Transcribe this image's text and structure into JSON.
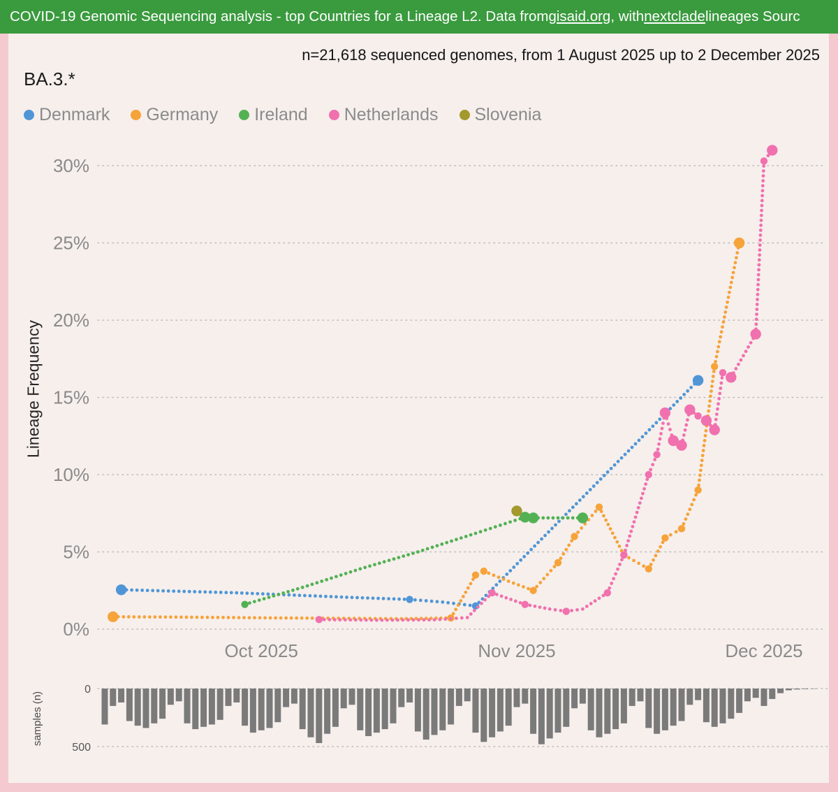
{
  "header": {
    "text_before": "COVID-19 Genomic Sequencing analysis - top Countries for a Lineage L2. Data from ",
    "link1": "gisaid.org",
    "text_mid": ", with ",
    "link2": "nextclade",
    "text_after": " lineages Sourc"
  },
  "subtitle": "n=21,618 sequenced genomes, from 1 August 2025 up to 2 December 2025",
  "lineage_title": "BA.3.*",
  "colors": {
    "header_bg": "#3a9a3e",
    "frame_pink": "#f5c9d0",
    "page_bg": "#f6efec",
    "grid": "#bdbdbd",
    "tick_label": "#8a8a8a",
    "bar_gray": "#7a7a7a"
  },
  "chart_data": {
    "type": "line",
    "title": "BA.3.*",
    "ylabel": "Lineage Frequency",
    "ylim": [
      0,
      32
    ],
    "yticks": [
      0,
      5,
      10,
      15,
      20,
      25,
      30
    ],
    "grid": "dotted",
    "legend_position": "top-left",
    "x_domain": {
      "start": "2025-09-12",
      "end": "2025-12-07"
    },
    "xticks": [
      {
        "date": "2025-10-01",
        "label": "Oct 2025"
      },
      {
        "date": "2025-11-01",
        "label": "Nov 2025"
      },
      {
        "date": "2025-12-01",
        "label": "Dec 2025"
      }
    ],
    "series": [
      {
        "name": "Denmark",
        "color": "#5096d6",
        "points": [
          [
            "2025-09-14",
            2.55,
            "l"
          ],
          [
            "2025-09-21",
            2.45,
            "s"
          ],
          [
            "2025-09-28",
            2.35,
            "s"
          ],
          [
            "2025-10-05",
            2.2,
            "s"
          ],
          [
            "2025-10-12",
            2.05,
            "s"
          ],
          [
            "2025-10-19",
            1.92,
            "m"
          ],
          [
            "2025-10-23",
            1.75,
            "s"
          ],
          [
            "2025-10-27",
            1.5,
            "m"
          ],
          [
            "2025-11-23",
            16.1,
            "l"
          ]
        ]
      },
      {
        "name": "Germany",
        "color": "#f6a33a",
        "points": [
          [
            "2025-09-13",
            0.8,
            "l"
          ],
          [
            "2025-09-20",
            0.78,
            "s"
          ],
          [
            "2025-09-27",
            0.75,
            "s"
          ],
          [
            "2025-10-04",
            0.72,
            "s"
          ],
          [
            "2025-10-11",
            0.7,
            "s"
          ],
          [
            "2025-10-18",
            0.67,
            "s"
          ],
          [
            "2025-10-24",
            0.72,
            "m"
          ],
          [
            "2025-10-27",
            3.5,
            "m"
          ],
          [
            "2025-10-28",
            3.75,
            "m"
          ],
          [
            "2025-10-31",
            3.1,
            "s"
          ],
          [
            "2025-11-03",
            2.5,
            "m"
          ],
          [
            "2025-11-06",
            4.3,
            "m"
          ],
          [
            "2025-11-08",
            6.0,
            "m"
          ],
          [
            "2025-11-11",
            7.9,
            "m"
          ],
          [
            "2025-11-14",
            4.8,
            "m"
          ],
          [
            "2025-11-17",
            3.9,
            "m"
          ],
          [
            "2025-11-19",
            5.9,
            "m"
          ],
          [
            "2025-11-21",
            6.5,
            "m"
          ],
          [
            "2025-11-23",
            9.0,
            "m"
          ],
          [
            "2025-11-25",
            17.0,
            "m"
          ],
          [
            "2025-11-28",
            25.0,
            "l"
          ]
        ]
      },
      {
        "name": "Ireland",
        "color": "#53b153",
        "points": [
          [
            "2025-09-29",
            1.6,
            "m"
          ],
          [
            "2025-10-06",
            2.7,
            "s"
          ],
          [
            "2025-10-13",
            3.9,
            "s"
          ],
          [
            "2025-10-20",
            5.0,
            "s"
          ],
          [
            "2025-10-27",
            6.2,
            "s"
          ],
          [
            "2025-11-02",
            7.25,
            "l"
          ],
          [
            "2025-11-03",
            7.2,
            "l"
          ],
          [
            "2025-11-09",
            7.2,
            "l"
          ]
        ]
      },
      {
        "name": "Netherlands",
        "color": "#f170ae",
        "points": [
          [
            "2025-10-08",
            0.62,
            "m"
          ],
          [
            "2025-10-15",
            0.58,
            "s"
          ],
          [
            "2025-10-22",
            0.6,
            "s"
          ],
          [
            "2025-10-26",
            0.75,
            "s"
          ],
          [
            "2025-10-29",
            2.35,
            "m"
          ],
          [
            "2025-11-02",
            1.6,
            "m"
          ],
          [
            "2025-11-05",
            1.3,
            "s"
          ],
          [
            "2025-11-07",
            1.15,
            "m"
          ],
          [
            "2025-11-09",
            1.3,
            "s"
          ],
          [
            "2025-11-12",
            2.35,
            "m"
          ],
          [
            "2025-11-14",
            4.8,
            "m"
          ],
          [
            "2025-11-17",
            10.0,
            "m"
          ],
          [
            "2025-11-18",
            11.3,
            "m"
          ],
          [
            "2025-11-19",
            14.0,
            "l"
          ],
          [
            "2025-11-20",
            12.2,
            "l"
          ],
          [
            "2025-11-21",
            11.9,
            "l"
          ],
          [
            "2025-11-22",
            14.2,
            "l"
          ],
          [
            "2025-11-23",
            13.8,
            "m"
          ],
          [
            "2025-11-24",
            13.5,
            "l"
          ],
          [
            "2025-11-25",
            12.9,
            "l"
          ],
          [
            "2025-11-26",
            16.6,
            "m"
          ],
          [
            "2025-11-27",
            16.3,
            "l"
          ],
          [
            "2025-11-30",
            19.1,
            "l"
          ],
          [
            "2025-12-01",
            30.3,
            "m"
          ],
          [
            "2025-12-02",
            31.0,
            "l"
          ]
        ]
      },
      {
        "name": "Slovenia",
        "color": "#a3992c",
        "points": [
          [
            "2025-11-01",
            7.65,
            "l"
          ]
        ]
      }
    ],
    "samples_chart": {
      "ylabel": "samples (n)",
      "yticks": [
        0,
        500
      ],
      "start_date": "2025-09-12",
      "values": [
        310,
        150,
        120,
        280,
        320,
        340,
        300,
        260,
        140,
        110,
        300,
        350,
        330,
        310,
        270,
        150,
        120,
        320,
        380,
        360,
        340,
        290,
        160,
        130,
        350,
        420,
        470,
        390,
        330,
        170,
        140,
        360,
        410,
        380,
        350,
        300,
        160,
        120,
        370,
        440,
        400,
        360,
        310,
        150,
        110,
        380,
        460,
        420,
        370,
        320,
        160,
        130,
        390,
        480,
        430,
        380,
        330,
        170,
        130,
        360,
        420,
        390,
        350,
        300,
        150,
        110,
        340,
        390,
        360,
        320,
        280,
        140,
        100,
        290,
        330,
        300,
        260,
        210,
        110,
        80,
        150,
        90,
        40,
        15,
        8,
        5,
        3
      ]
    }
  }
}
